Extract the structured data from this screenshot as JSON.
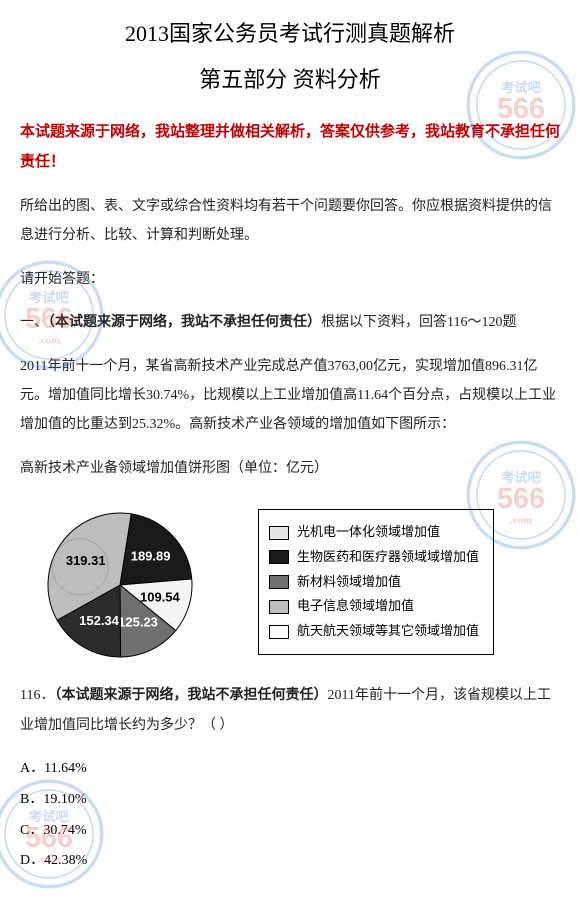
{
  "title_line1": "2013国家公务员考试行测真题解析",
  "title_line2": "第五部分  资料分析",
  "disclaimer_bold": "本试题来源于网络，我站整理并做相关解析，答案仅供参考，我站教育不承担任何责任！",
  "intro1": "所给出的图、表、文字或综合性资料均有若干个问题要你回答。你应根据资料提供的信息进行分析、比较、计算和判断处理。",
  "intro2": "请开始答题：",
  "section1_prefix": "一、",
  "section1_bold": "（本试题来源于网络，我站不承担任何责任）",
  "section1_tail": "根据以下资料，回答116～120题",
  "para1": "2011年前十一个月，某省高新技术产业完成总产值3763,00亿元，实现增加值896.31亿元。增加值同比增长30.74%，比规模以上工业增加值高11.64个百分点，占规模以上工业增加值的比重达到25.32%。高新技术产业各领域的增加值如下图所示：",
  "chart_caption": "高新技术产业备领域增加值饼形图（单位：亿元）",
  "pie": {
    "slices": [
      {
        "label": "189.89",
        "value": 189.89,
        "color": "#1a1a1a"
      },
      {
        "label": "109.54",
        "value": 109.54,
        "color": "#f5f5f5"
      },
      {
        "label": "125.23",
        "value": 125.23,
        "color": "#707070"
      },
      {
        "label": "152.34",
        "value": 152.34,
        "color": "#2b2b2b"
      },
      {
        "label": "319.31",
        "value": 319.31,
        "color": "#bdbdbd"
      }
    ],
    "label_color": "#000000",
    "label_color_light": "#ffffff",
    "stroke": "#000000"
  },
  "legend": [
    {
      "text": "光机电一体化领域增加值",
      "color": "#e6e6e6"
    },
    {
      "text": "生物医药和医疗器领域域增加值",
      "color": "#1a1a1a"
    },
    {
      "text": "新材料领域增加值",
      "color": "#707070"
    },
    {
      "text": "电子信息领域增加值",
      "color": "#bdbdbd"
    },
    {
      "text": "航天航天领域等其它领域增加值",
      "color": "#ffffff"
    }
  ],
  "q116_prefix": "116．",
  "q116_bold": "（本试题来源于网络，我站不承担任何责任）",
  "q116_tail": "2011年前十一个月，该省规模以上工业增加值同比增长约为多少？（  ）",
  "options": {
    "A": "A．11.64%",
    "B": "B．19.10%",
    "C": "C．30.74%",
    "D": "D．42.38%"
  },
  "watermark": {
    "big": "566",
    "small": "考试吧",
    "dot": ".com",
    "color_red": "#d84c2f",
    "color_blue": "#2a7bd1",
    "border": "#2a7bd1"
  }
}
